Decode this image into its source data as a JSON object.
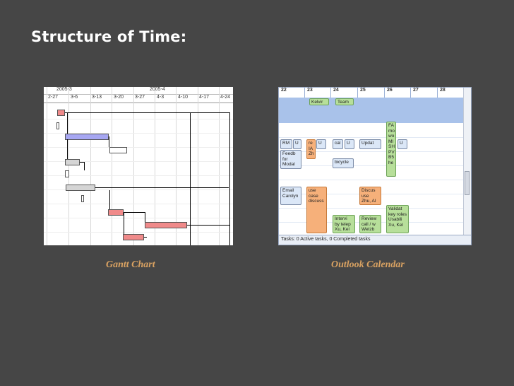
{
  "slide": {
    "title": "Structure of Time:",
    "caption_left": "Gantt Chart",
    "caption_right": "Outlook Calendar"
  },
  "gantt": {
    "months": [
      "2005-3",
      "2005-4"
    ],
    "days": [
      "2-27",
      "3-6",
      "3-13",
      "3-20",
      "3-27",
      "4-3",
      "4-10",
      "4-17",
      "4-24"
    ],
    "bar_colors": [
      "#f08a8a",
      "#ffffff",
      "#a7a7f2",
      "#d5d5d5"
    ]
  },
  "outlook": {
    "days": [
      "22",
      "23",
      "24",
      "25",
      "26",
      "27",
      "28"
    ],
    "allday": [
      "Kelvir",
      "Team"
    ],
    "appointments": {
      "a1": "RM",
      "a2": "U",
      "a3": "Feedb for Modal",
      "a4": "Email Carolyn",
      "a5": "re IA Zh",
      "a6": "U",
      "a7": "use case discuss",
      "a8": "cal",
      "a9": "U",
      "a10": "bicycle",
      "a11": "Intervi by telep Xu, Kel",
      "a12": "Updat",
      "a13": "Discus use Zhu, Al",
      "a14": "Review call / w Wetzb",
      "a15": "FA mo wo MI SH PV B5 he",
      "a16": "U",
      "a17": "Validat key roles Usabili Xu, Kel"
    },
    "status": "Tasks: 0 Active tasks, 0 Completed tasks"
  }
}
